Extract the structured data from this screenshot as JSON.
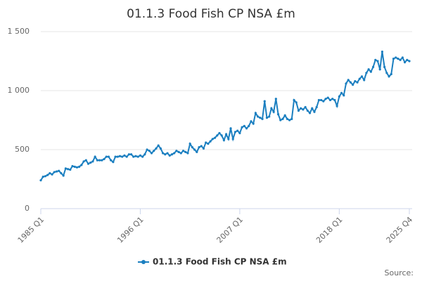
{
  "chart_data": {
    "type": "line",
    "title": "01.1.3 Food Fish CP NSA £m",
    "source": "Source:",
    "categories": [
      "1985 Q1",
      null,
      null,
      null,
      null,
      null,
      null,
      null,
      null,
      null,
      null,
      null,
      null,
      null,
      null,
      null,
      null,
      null,
      null,
      null,
      null,
      null,
      null,
      null,
      null,
      null,
      null,
      null,
      null,
      null,
      null,
      null,
      null,
      null,
      null,
      null,
      null,
      null,
      null,
      null,
      null,
      null,
      null,
      null,
      "1996 Q1",
      null,
      null,
      null,
      null,
      null,
      null,
      null,
      null,
      null,
      null,
      null,
      null,
      null,
      null,
      null,
      null,
      null,
      null,
      null,
      null,
      null,
      null,
      null,
      null,
      null,
      null,
      null,
      null,
      null,
      null,
      null,
      null,
      null,
      null,
      null,
      null,
      null,
      null,
      null,
      null,
      null,
      null,
      null,
      "2007 Q1",
      null,
      null,
      null,
      null,
      null,
      null,
      null,
      null,
      null,
      null,
      null,
      null,
      null,
      null,
      null,
      null,
      null,
      null,
      null,
      null,
      null,
      null,
      null,
      null,
      null,
      null,
      null,
      null,
      null,
      null,
      null,
      null,
      null,
      null,
      null,
      null,
      null,
      null,
      null,
      null,
      null,
      null,
      null,
      "2018 Q1",
      null,
      null,
      null,
      null,
      null,
      null,
      null,
      null,
      null,
      null,
      null,
      null,
      null,
      null,
      null,
      null,
      null,
      null,
      null,
      null,
      null,
      null,
      null,
      null,
      null,
      null,
      null,
      null,
      null,
      null,
      "2025 Q4"
    ],
    "series": [
      {
        "name": "01.1.3 Food Fish CP NSA £m",
        "color": "#1b7fc0",
        "values": [
          240,
          270,
          275,
          285,
          300,
          290,
          310,
          315,
          320,
          300,
          280,
          340,
          335,
          330,
          360,
          355,
          350,
          355,
          370,
          400,
          410,
          380,
          390,
          400,
          440,
          410,
          410,
          410,
          420,
          440,
          440,
          410,
          395,
          440,
          440,
          445,
          440,
          450,
          440,
          460,
          460,
          440,
          445,
          440,
          450,
          440,
          460,
          500,
          490,
          470,
          490,
          510,
          535,
          510,
          470,
          460,
          470,
          450,
          460,
          470,
          490,
          480,
          470,
          490,
          480,
          470,
          550,
          520,
          500,
          480,
          520,
          530,
          510,
          560,
          550,
          570,
          590,
          600,
          620,
          640,
          620,
          580,
          630,
          590,
          680,
          590,
          650,
          660,
          640,
          690,
          700,
          680,
          700,
          740,
          720,
          810,
          780,
          770,
          760,
          910,
          770,
          780,
          850,
          820,
          930,
          800,
          750,
          760,
          790,
          760,
          750,
          760,
          920,
          900,
          830,
          850,
          840,
          860,
          830,
          810,
          850,
          820,
          860,
          920,
          920,
          910,
          930,
          940,
          920,
          930,
          920,
          870,
          950,
          980,
          960,
          1060,
          1090,
          1070,
          1050,
          1080,
          1070,
          1100,
          1120,
          1090,
          1150,
          1180,
          1160,
          1200,
          1260,
          1250,
          1180,
          1330,
          1200,
          1150,
          1120,
          1140,
          1270,
          1280,
          1270,
          1260,
          1280,
          1240,
          1260,
          1250
        ]
      }
    ],
    "ylim": [
      0,
      1500
    ],
    "yticks": [
      0,
      500,
      {
        "value": 1000,
        "label": "1 000"
      },
      {
        "value": 1500,
        "label": "1 500"
      }
    ],
    "grid": true
  }
}
